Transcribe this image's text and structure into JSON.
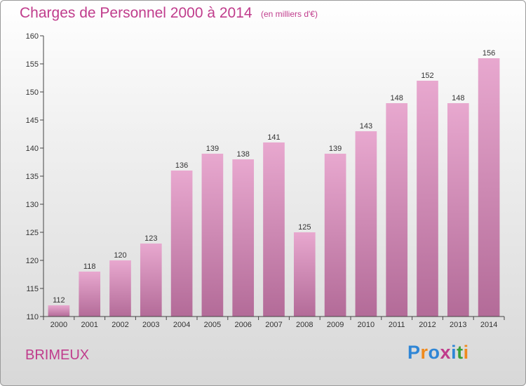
{
  "header": {
    "title": "Charges de Personnel 2000 à 2014",
    "unit": "(en milliers d'€)"
  },
  "footer": {
    "commune": "BRIMEUX",
    "logo": [
      "P",
      "r",
      "o",
      "x",
      "i",
      "t",
      "i"
    ]
  },
  "colors": {
    "title": "#c03c8c",
    "bar_top": "#e8a8cf",
    "bar_bottom": "#b36b98",
    "logo": [
      "#2f86d6",
      "#f08a1c",
      "#2f86d6",
      "#c03c8c",
      "#2f86d6",
      "#3aa03a",
      "#f08a1c"
    ]
  },
  "chart_data": {
    "type": "bar",
    "categories": [
      "2000",
      "2001",
      "2002",
      "2003",
      "2004",
      "2005",
      "2006",
      "2007",
      "2008",
      "2009",
      "2010",
      "2011",
      "2012",
      "2013",
      "2014"
    ],
    "values": [
      112,
      118,
      120,
      123,
      136,
      139,
      138,
      141,
      125,
      139,
      143,
      148,
      152,
      148,
      156
    ],
    "ylim": [
      110,
      160
    ],
    "yticks": [
      110,
      115,
      120,
      125,
      130,
      135,
      140,
      145,
      150,
      155,
      160
    ],
    "grid": false,
    "legend": "none"
  }
}
